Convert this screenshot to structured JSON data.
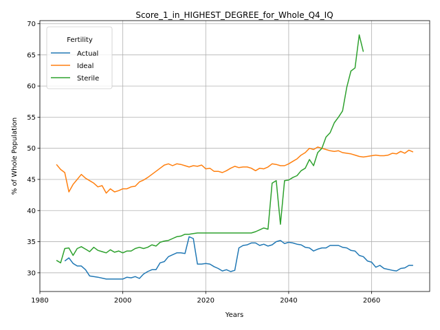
{
  "chart_data": {
    "type": "line",
    "title": "Score_1_in_HIGHEST_DEGREE_for_Whole_Q4_IQ",
    "xlabel": "Years",
    "ylabel": "% of Whole Population",
    "xlim": [
      1980,
      2074
    ],
    "ylim": [
      27,
      70.5
    ],
    "xticks": [
      1980,
      2000,
      2020,
      2040,
      2060
    ],
    "yticks": [
      30,
      35,
      40,
      45,
      50,
      55,
      60,
      65,
      70
    ],
    "grid": true,
    "legend": {
      "title": "Fertility",
      "placement": "top-left"
    },
    "series": [
      {
        "name": "Actual",
        "color": "#1f77b4",
        "x": [
          1986,
          1987,
          1988,
          1989,
          1990,
          1991,
          1992,
          1994,
          1996,
          1998,
          1999,
          2000,
          2001,
          2002,
          2003,
          2004,
          2005,
          2006,
          2007,
          2008,
          2009,
          2010,
          2011,
          2012,
          2013,
          2014,
          2015,
          2016,
          2017,
          2018,
          2019,
          2020,
          2021,
          2022,
          2023,
          2024,
          2025,
          2026,
          2027,
          2028,
          2029,
          2030,
          2031,
          2032,
          2033,
          2034,
          2035,
          2036,
          2037,
          2038,
          2039,
          2040,
          2041,
          2042,
          2043,
          2044,
          2045,
          2046,
          2047,
          2048,
          2049,
          2050,
          2051,
          2052,
          2053,
          2054,
          2055,
          2056,
          2057,
          2058,
          2059,
          2060,
          2061,
          2062,
          2063,
          2065,
          2066,
          2067,
          2068,
          2069,
          2070
        ],
        "y": [
          31.9,
          32.4,
          31.5,
          31.1,
          31.1,
          30.5,
          29.5,
          29.3,
          29.0,
          29.0,
          29.0,
          29.0,
          29.3,
          29.2,
          29.4,
          29.1,
          29.8,
          30.2,
          30.5,
          30.5,
          31.6,
          31.8,
          32.6,
          32.9,
          33.2,
          33.2,
          33.1,
          35.8,
          35.5,
          31.4,
          31.4,
          31.5,
          31.4,
          31.0,
          30.7,
          30.3,
          30.5,
          30.2,
          30.4,
          34.0,
          34.4,
          34.5,
          34.8,
          34.8,
          34.4,
          34.6,
          34.3,
          34.5,
          35.0,
          35.2,
          34.7,
          34.9,
          34.8,
          34.6,
          34.5,
          34.1,
          34.0,
          33.5,
          33.8,
          34.0,
          34.0,
          34.4,
          34.4,
          34.4,
          34.1,
          34.0,
          33.6,
          33.5,
          32.8,
          32.6,
          31.9,
          31.7,
          30.9,
          31.2,
          30.7,
          30.4,
          30.3,
          30.7,
          30.8,
          31.2,
          31.2
        ]
      },
      {
        "name": "Ideal",
        "color": "#ff7f0e",
        "x": [
          1984,
          1985,
          1986,
          1987,
          1988,
          1989,
          1990,
          1991,
          1992,
          1993,
          1994,
          1995,
          1996,
          1997,
          1998,
          1999,
          2000,
          2001,
          2002,
          2003,
          2004,
          2005,
          2006,
          2007,
          2008,
          2009,
          2010,
          2011,
          2012,
          2013,
          2014,
          2015,
          2016,
          2017,
          2018,
          2019,
          2020,
          2021,
          2022,
          2023,
          2024,
          2025,
          2026,
          2027,
          2028,
          2029,
          2030,
          2031,
          2032,
          2033,
          2034,
          2035,
          2036,
          2037,
          2038,
          2039,
          2040,
          2041,
          2042,
          2043,
          2044,
          2045,
          2046,
          2047,
          2048,
          2049,
          2050,
          2051,
          2052,
          2053,
          2054,
          2055,
          2056,
          2057,
          2058,
          2059,
          2060,
          2061,
          2062,
          2063,
          2064,
          2065,
          2066,
          2067,
          2068,
          2069,
          2070
        ],
        "y": [
          47.4,
          46.6,
          46.1,
          43.0,
          44.2,
          45.0,
          45.8,
          45.2,
          44.8,
          44.4,
          43.8,
          44.0,
          42.8,
          43.5,
          43.0,
          43.2,
          43.5,
          43.5,
          43.8,
          43.9,
          44.6,
          44.9,
          45.3,
          45.8,
          46.3,
          46.8,
          47.3,
          47.5,
          47.2,
          47.5,
          47.4,
          47.2,
          47.0,
          47.2,
          47.1,
          47.3,
          46.7,
          46.8,
          46.3,
          46.3,
          46.1,
          46.4,
          46.8,
          47.1,
          46.9,
          47.0,
          47.0,
          46.8,
          46.4,
          46.8,
          46.7,
          47.0,
          47.5,
          47.4,
          47.2,
          47.2,
          47.5,
          47.9,
          48.3,
          48.9,
          49.3,
          50.0,
          49.8,
          50.2,
          50.0,
          49.8,
          49.6,
          49.5,
          49.6,
          49.3,
          49.2,
          49.1,
          48.9,
          48.7,
          48.6,
          48.7,
          48.8,
          48.9,
          48.8,
          48.8,
          48.9,
          49.2,
          49.1,
          49.5,
          49.2,
          49.7,
          49.4
        ]
      },
      {
        "name": "Sterile",
        "color": "#2ca02c",
        "x": [
          1984,
          1985,
          1986,
          1987,
          1988,
          1989,
          1990,
          1991,
          1992,
          1993,
          1994,
          1995,
          1996,
          1997,
          1998,
          1999,
          2000,
          2001,
          2002,
          2003,
          2004,
          2005,
          2006,
          2007,
          2008,
          2009,
          2010,
          2011,
          2012,
          2013,
          2014,
          2015,
          2016,
          2017,
          2018,
          2019,
          2020,
          2021,
          2022,
          2023,
          2024,
          2025,
          2026,
          2027,
          2028,
          2029,
          2030,
          2031,
          2032,
          2033,
          2034,
          2035,
          2036,
          2037,
          2038,
          2039,
          2040,
          2041,
          2042,
          2043,
          2044,
          2045,
          2046,
          2047,
          2048,
          2049,
          2050,
          2051,
          2052,
          2053,
          2054,
          2055,
          2056,
          2057,
          2058
        ],
        "y": [
          32.0,
          31.6,
          33.9,
          34.0,
          32.8,
          33.9,
          34.2,
          33.8,
          33.4,
          34.1,
          33.6,
          33.4,
          33.2,
          33.7,
          33.3,
          33.5,
          33.2,
          33.5,
          33.5,
          33.9,
          34.1,
          33.9,
          34.1,
          34.5,
          34.3,
          34.9,
          35.1,
          35.2,
          35.5,
          35.8,
          35.9,
          36.2,
          36.2,
          36.3,
          36.4,
          36.4,
          36.4,
          36.4,
          36.4,
          36.4,
          36.4,
          36.4,
          36.4,
          36.4,
          36.4,
          36.4,
          36.4,
          36.4,
          36.6,
          36.9,
          37.2,
          37.0,
          44.4,
          44.8,
          37.8,
          44.8,
          44.9,
          45.3,
          45.6,
          46.4,
          46.8,
          48.2,
          47.2,
          49.3,
          50.0,
          51.8,
          52.5,
          54.1,
          55.0,
          56.0,
          59.8,
          62.4,
          62.9,
          68.2,
          65.5
        ]
      }
    ]
  }
}
